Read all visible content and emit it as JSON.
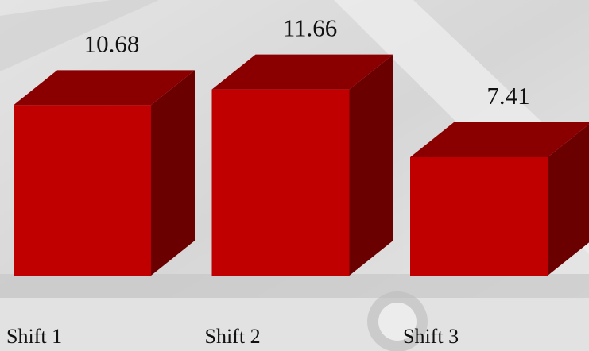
{
  "chart_data": {
    "type": "bar3d",
    "categories": [
      "Shift 1",
      "Shift 2",
      "Shift 3"
    ],
    "values": [
      10.68,
      11.66,
      7.41
    ],
    "color": "#c00000"
  }
}
